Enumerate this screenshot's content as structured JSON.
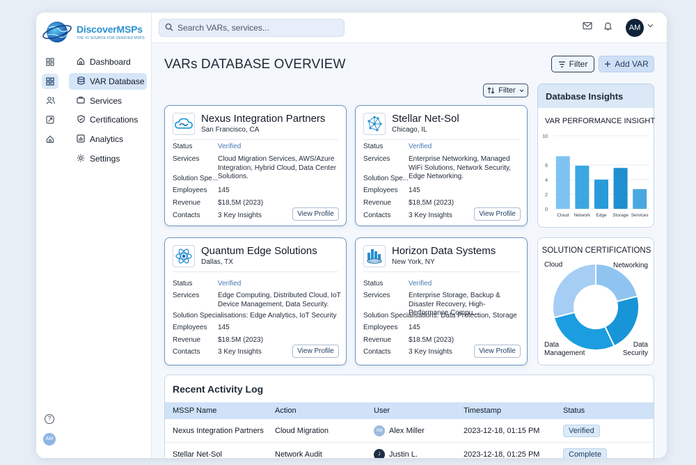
{
  "brand": {
    "name": "DiscoverMSPs",
    "tagline": "THE #1 SOURCE FOR VERIFIED MSPS"
  },
  "nav": [
    {
      "label": "Dashboard",
      "icon": "home-icon"
    },
    {
      "label": "VAR Database",
      "icon": "database-icon"
    },
    {
      "label": "Services",
      "icon": "briefcase-icon"
    },
    {
      "label": "Certifications",
      "icon": "shield-icon"
    },
    {
      "label": "Analytics",
      "icon": "bar-chart-icon"
    },
    {
      "label": "Settings",
      "icon": "gear-icon"
    }
  ],
  "search": {
    "placeholder": "Search VARs, services..."
  },
  "user": {
    "initials": "AM"
  },
  "page": {
    "title": "VARs DATABASE OVERVIEW",
    "filter_label": "Filter",
    "add_label": "Add VAR",
    "sub_filter_label": "Filter"
  },
  "labels": {
    "status": "Status",
    "services": "Services",
    "specialisations": "Solution Specialisations:",
    "spec_short": "Solution Spe...",
    "employees": "Employees",
    "revenue": "Revenue",
    "contacts": "Contacts",
    "view_profile": "View Profile"
  },
  "cards": [
    {
      "name": "Nexus Integration Partners",
      "city": "San Francisco, CA",
      "status": "Verified",
      "services": "Cloud Migration Services, AWS/Azure Integration, Hybrid Cloud, Data Center Solutions.",
      "employees": "145",
      "revenue": "$18,5M (2023)",
      "contacts": "3 Key Insights"
    },
    {
      "name": "Stellar Net-Sol",
      "city": "Chicago, IL",
      "status": "Verified",
      "services": "Enterprise Networking, Managed WiFi Solutions, Network Security, Edge Networking.",
      "employees": "145",
      "revenue": "$18,5M (2023)",
      "contacts": "3 Key Insights"
    },
    {
      "name": "Quantum Edge Solutions",
      "city": "Dallas, TX",
      "status": "Verified",
      "services": "Edge Computing, Distributed Cloud, IoT Device Management, Data Security.",
      "specialisations": "Edge Analytics, IoT Security",
      "employees": "145",
      "revenue": "$18.5M (2023)",
      "contacts": "3 Key Insights"
    },
    {
      "name": "Horizon Data Systems",
      "city": "New York, NY",
      "status": "Verified",
      "services": "Enterprise Storage, Backup & Disaster Recovery, High-Performance Compu...",
      "specialisations": "Data Protection, Storage",
      "employees": "145",
      "revenue": "$18.5M (2023)",
      "contacts": "3 Key Insights"
    }
  ],
  "insights": {
    "header": "Database Insights"
  },
  "chart_data": [
    {
      "type": "bar",
      "title": "VAR PERFORMANCE INSIGHTS",
      "categories": [
        "Cloud",
        "Network",
        "Edge",
        "Storage",
        "Services"
      ],
      "values": [
        7.2,
        5.9,
        4.0,
        5.6,
        2.7
      ],
      "ylim": [
        0,
        10
      ],
      "yticks": [
        "0",
        "2",
        "4",
        "6",
        "10"
      ],
      "colors": [
        "#7ec3f0",
        "#3ba7e2",
        "#2a9bd9",
        "#1f8fd0",
        "#4aa8e0"
      ]
    },
    {
      "type": "pie",
      "title": "SOLUTION CERTIFICATIONS",
      "categories": [
        "Cloud",
        "Networking",
        "Data Security",
        "Data Management"
      ],
      "values": [
        29,
        21,
        22,
        28
      ],
      "colors": [
        "#a6cdf3",
        "#8fc4f0",
        "#1795d6",
        "#1c9de0"
      ],
      "label_lines": [
        [
          "Cloud"
        ],
        [
          "Networking"
        ],
        [
          "Data",
          "Security"
        ],
        [
          "Data",
          "Management"
        ]
      ]
    }
  ],
  "activity": {
    "title": "Recent Activity Log",
    "columns": [
      "MSSP Name",
      "Action",
      "User",
      "Timestamp",
      "Status"
    ],
    "rows": [
      {
        "mssp": "Nexus Integration Partners",
        "action": "Cloud Migration",
        "user_initials": "AM",
        "user": "Alex Miller",
        "timestamp": "2023-12-18, 01:15 PM",
        "status": "Verified"
      },
      {
        "mssp": "Stellar Net-Sol",
        "action": "Network Audit",
        "user_initials": "J",
        "user": "Justin L.",
        "timestamp": "2023-12-18, 01:25 PM",
        "status": "Complete"
      }
    ]
  }
}
